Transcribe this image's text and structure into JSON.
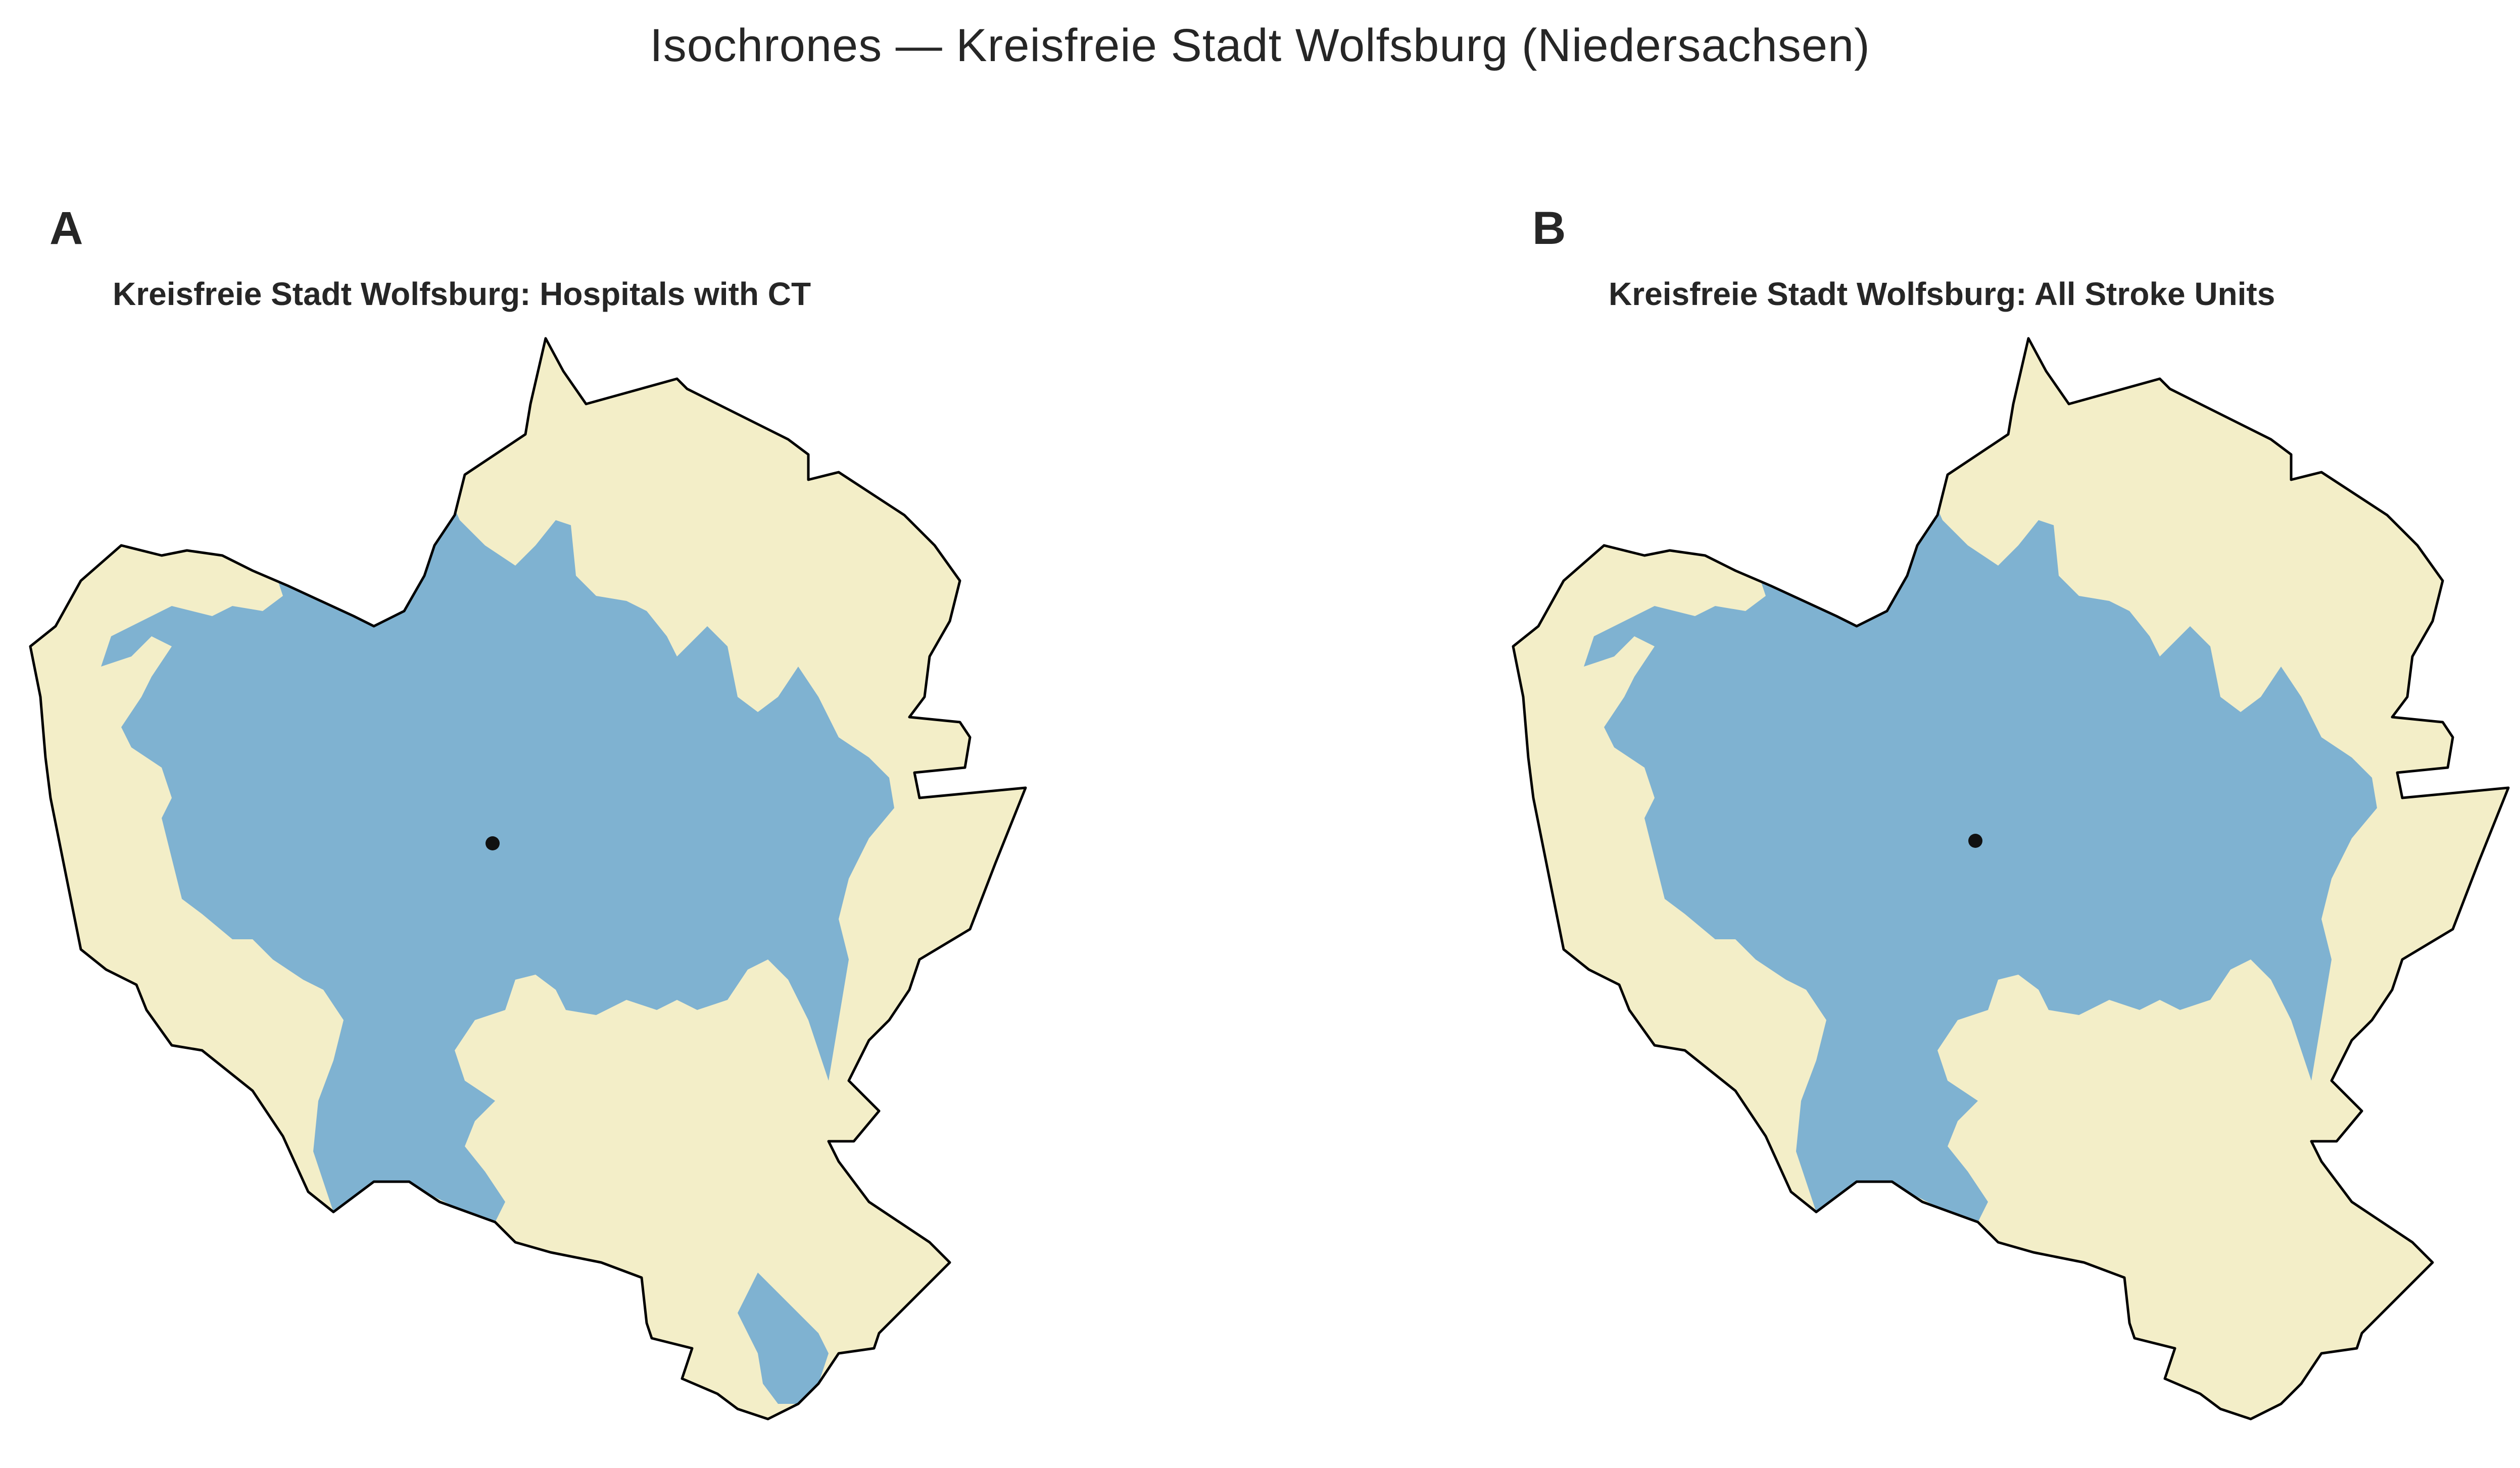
{
  "figure": {
    "title": "Isochrones — Kreisfreie Stadt Wolfsburg (Niedersachsen)"
  },
  "colors": {
    "outside_isochrone": "#f3eec8",
    "inside_isochrone": "#7fb2d1",
    "boundary": "#000000",
    "marker": "#111111"
  },
  "panels": [
    {
      "letter": "A",
      "title": "Kreisfreie Stadt Wolfsburg: Hospitals with CT",
      "layers": [
        "district-boundary",
        "isochrone-area",
        "origin-point"
      ]
    },
    {
      "letter": "B",
      "title": "Kreisfreie Stadt Wolfsburg: All Stroke Units",
      "layers": [
        "district-boundary",
        "isochrone-area",
        "origin-point"
      ]
    }
  ]
}
